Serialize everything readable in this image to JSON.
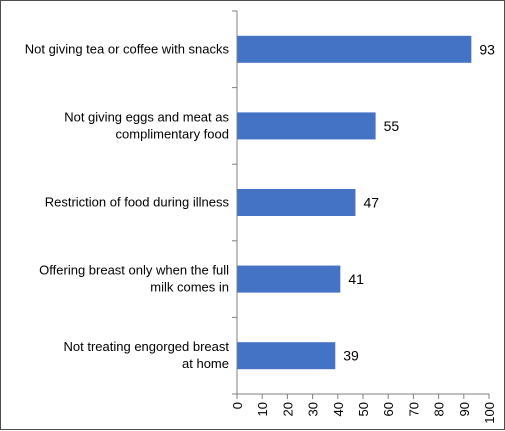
{
  "chart_data": {
    "type": "bar",
    "orientation": "horizontal",
    "categories": [
      [
        "Not giving tea or coffee with snacks"
      ],
      [
        "Not giving eggs and meat as",
        "complimentary food"
      ],
      [
        "Restriction of food during illness"
      ],
      [
        "Offering breast only when the full",
        "milk comes in"
      ],
      [
        "Not treating engorged breast",
        "at home"
      ]
    ],
    "values": [
      93,
      55,
      47,
      41,
      39
    ],
    "data_labels": [
      "93",
      "55",
      "47",
      "41",
      "39"
    ],
    "xlim": [
      0,
      100
    ],
    "x_ticks": [
      "0",
      "10",
      "20",
      "30",
      "40",
      "50",
      "60",
      "70",
      "80",
      "90",
      "100"
    ],
    "title": "",
    "xlabel": "",
    "ylabel": "",
    "legend": "none",
    "grid": false,
    "bar_color": "#4472c4",
    "axis_color": "#808080"
  }
}
